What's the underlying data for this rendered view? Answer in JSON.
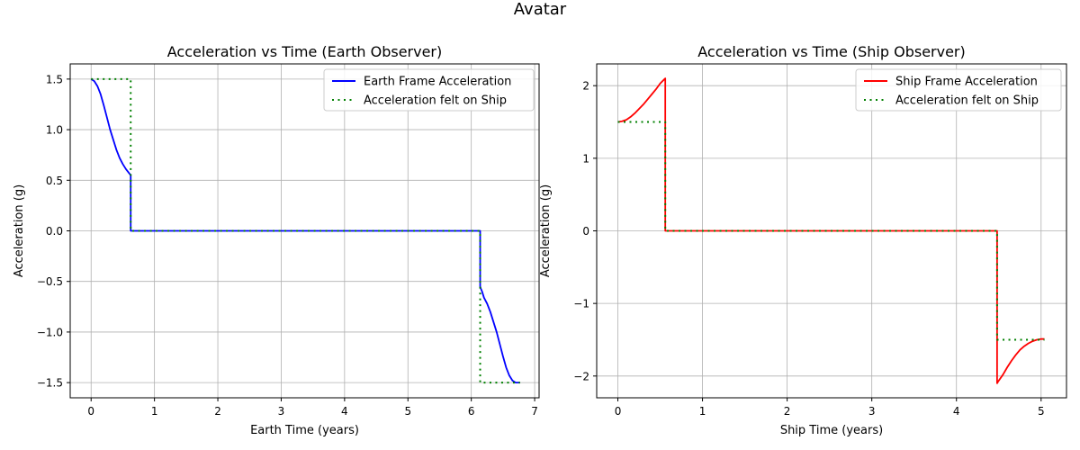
{
  "figure": {
    "suptitle": "Avatar"
  },
  "chart_data": [
    {
      "type": "line",
      "title": "Acceleration vs Time (Earth Observer)",
      "xlabel": "Earth Time (years)",
      "ylabel": "Acceleration (g)",
      "xlim": [
        -0.33,
        7.07
      ],
      "ylim": [
        -1.65,
        1.65
      ],
      "xticks": [
        0,
        1,
        2,
        3,
        4,
        5,
        6,
        7
      ],
      "yticks": [
        -1.5,
        -1.0,
        -0.5,
        0.0,
        0.5,
        1.0,
        1.5
      ],
      "ytick_labels": [
        "−1.5",
        "−1.0",
        "−0.5",
        "0.0",
        "0.5",
        "1.0",
        "1.5"
      ],
      "grid": true,
      "legend_position": "top-right",
      "series": [
        {
          "name": "Earth Frame Acceleration",
          "color": "#0000ff",
          "style": "solid",
          "x": [
            0,
            0.05,
            0.1,
            0.15,
            0.2,
            0.25,
            0.3,
            0.35,
            0.4,
            0.45,
            0.5,
            0.55,
            0.6,
            0.625,
            0.625,
            0.63,
            3.0,
            6.14,
            6.14,
            6.15,
            6.17,
            6.2,
            6.25,
            6.3,
            6.35,
            6.4,
            6.45,
            6.5,
            6.55,
            6.6,
            6.65,
            6.7,
            6.75,
            6.77
          ],
          "y": [
            1.5,
            1.48,
            1.43,
            1.35,
            1.24,
            1.12,
            1.0,
            0.9,
            0.8,
            0.72,
            0.66,
            0.61,
            0.57,
            0.55,
            0.0,
            0.0,
            0.0,
            0.0,
            -0.55,
            -0.57,
            -0.6,
            -0.66,
            -0.72,
            -0.8,
            -0.9,
            -1.0,
            -1.12,
            -1.24,
            -1.35,
            -1.43,
            -1.48,
            -1.5,
            -1.5,
            -1.5
          ]
        },
        {
          "name": "Acceleration felt on Ship",
          "color": "#008000",
          "style": "dotted",
          "x": [
            0,
            0.625,
            0.625,
            6.14,
            6.14,
            6.77
          ],
          "y": [
            1.5,
            1.5,
            0.0,
            0.0,
            -1.5,
            -1.5
          ]
        }
      ]
    },
    {
      "type": "line",
      "title": "Acceleration vs Time (Ship Observer)",
      "xlabel": "Ship Time (years)",
      "ylabel": "Acceleration (g)",
      "xlim": [
        -0.25,
        5.3
      ],
      "ylim": [
        -2.3,
        2.3
      ],
      "xticks": [
        0,
        1,
        2,
        3,
        4,
        5
      ],
      "yticks": [
        -2,
        -1,
        0,
        1,
        2
      ],
      "ytick_labels": [
        "−2",
        "−1",
        "0",
        "1",
        "2"
      ],
      "grid": true,
      "legend_position": "top-right",
      "series": [
        {
          "name": "Ship Frame Acceleration",
          "color": "#ff0000",
          "style": "solid",
          "x": [
            0,
            0.05,
            0.1,
            0.15,
            0.2,
            0.25,
            0.3,
            0.35,
            0.4,
            0.45,
            0.5,
            0.55,
            0.56,
            0.56,
            0.57,
            2.5,
            4.48,
            4.48,
            4.49,
            4.55,
            4.6,
            4.65,
            4.7,
            4.75,
            4.8,
            4.85,
            4.9,
            4.95,
            5.0,
            5.04
          ],
          "y": [
            1.5,
            1.51,
            1.53,
            1.57,
            1.62,
            1.68,
            1.74,
            1.81,
            1.88,
            1.95,
            2.03,
            2.09,
            2.1,
            0.0,
            0.0,
            0.0,
            0.0,
            -2.1,
            -2.08,
            -1.98,
            -1.88,
            -1.79,
            -1.71,
            -1.64,
            -1.59,
            -1.55,
            -1.52,
            -1.5,
            -1.49,
            -1.49
          ]
        },
        {
          "name": "Acceleration felt on Ship",
          "color": "#008000",
          "style": "dotted",
          "x": [
            0,
            0.56,
            0.56,
            4.48,
            4.48,
            5.04
          ],
          "y": [
            1.5,
            1.5,
            0.0,
            0.0,
            -1.5,
            -1.5
          ]
        }
      ]
    }
  ]
}
